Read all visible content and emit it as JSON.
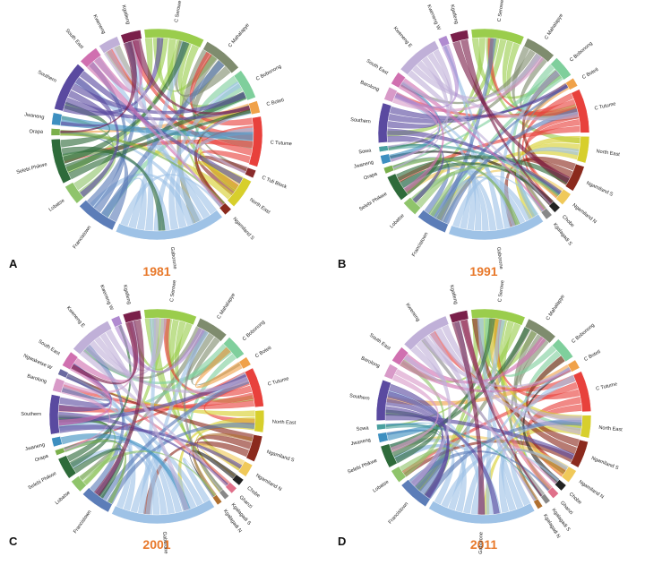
{
  "figure": {
    "panels": [
      {
        "letter": "A",
        "year": "1981",
        "regions": [
          {
            "name": "C Serowe",
            "size": 6,
            "color": "#9acd4c"
          },
          {
            "name": "C Mahalapye",
            "size": 4,
            "color": "#7f8c6e"
          },
          {
            "name": "C Bobonong",
            "size": 3,
            "color": "#7fcf9c"
          },
          {
            "name": "C Boteti",
            "size": 1.2,
            "color": "#f0a24a"
          },
          {
            "name": "C Tutume",
            "size": 5,
            "color": "#e8413c"
          },
          {
            "name": "C Tuli Block",
            "size": 0.8,
            "color": "#8a2b2b"
          },
          {
            "name": "North East",
            "size": 3,
            "color": "#d7cf2c"
          },
          {
            "name": "Ngamiland S",
            "size": 0.8,
            "color": "#8b2a1d"
          },
          {
            "name": "Gaborone",
            "size": 11,
            "color": "#9ec2e6"
          },
          {
            "name": "Francistown",
            "size": 4,
            "color": "#5c7db8"
          },
          {
            "name": "Lobatse",
            "size": 2,
            "color": "#8fc46b"
          },
          {
            "name": "Selebi Phikwe",
            "size": 4.5,
            "color": "#2e6b3a"
          },
          {
            "name": "Orapa",
            "size": 0.7,
            "color": "#7bb04c"
          },
          {
            "name": "Jwaneng",
            "size": 1.2,
            "color": "#3d8fc0"
          },
          {
            "name": "Southern",
            "size": 5,
            "color": "#5a4aa0"
          },
          {
            "name": "South East",
            "size": 2,
            "color": "#d070b0"
          },
          {
            "name": "Kweneng",
            "size": 2,
            "color": "#c0b0d8"
          },
          {
            "name": "Kgatleng",
            "size": 2,
            "color": "#7a1f4a"
          }
        ]
      },
      {
        "letter": "B",
        "year": "1991",
        "regions": [
          {
            "name": "C Serowe",
            "size": 6,
            "color": "#9acd4c"
          },
          {
            "name": "C Mahalapye",
            "size": 3.5,
            "color": "#7f8c6e"
          },
          {
            "name": "C Bobonong",
            "size": 2.5,
            "color": "#7fcf9c"
          },
          {
            "name": "C Boteti",
            "size": 1,
            "color": "#f0a24a"
          },
          {
            "name": "C Tutume",
            "size": 5,
            "color": "#e8413c"
          },
          {
            "name": "North East",
            "size": 3,
            "color": "#d7cf2c"
          },
          {
            "name": "Ngamiland S",
            "size": 3,
            "color": "#8b2a1d"
          },
          {
            "name": "Ngamiland N",
            "size": 1.5,
            "color": "#f0c95a"
          },
          {
            "name": "Chobe",
            "size": 0.8,
            "color": "#222222"
          },
          {
            "name": "Kgalagadi S",
            "size": 0.8,
            "color": "#888888"
          },
          {
            "name": "Gaborone",
            "size": 11,
            "color": "#9ec2e6"
          },
          {
            "name": "Francistown",
            "size": 3.5,
            "color": "#5c7db8"
          },
          {
            "name": "Lobatse",
            "size": 1.8,
            "color": "#8fc46b"
          },
          {
            "name": "Selebi Phikwe",
            "size": 3,
            "color": "#2e6b3a"
          },
          {
            "name": "Orapa",
            "size": 0.7,
            "color": "#7bb04c"
          },
          {
            "name": "Jwaneng",
            "size": 1,
            "color": "#3d8fc0"
          },
          {
            "name": "Sowa",
            "size": 0.6,
            "color": "#4aa0a0"
          },
          {
            "name": "Southern",
            "size": 4.5,
            "color": "#5a4aa0"
          },
          {
            "name": "Barolong",
            "size": 1.5,
            "color": "#d89ac8"
          },
          {
            "name": "South East",
            "size": 1.5,
            "color": "#d070b0"
          },
          {
            "name": "Kweneng E",
            "size": 5,
            "color": "#c0b0d8"
          },
          {
            "name": "Kweneng W",
            "size": 1,
            "color": "#b08ad0"
          },
          {
            "name": "Kgatleng",
            "size": 2,
            "color": "#7a1f4a"
          }
        ]
      },
      {
        "letter": "C",
        "year": "2001",
        "regions": [
          {
            "name": "C Serowe",
            "size": 6,
            "color": "#9acd4c"
          },
          {
            "name": "C Mahalapye",
            "size": 3.5,
            "color": "#7f8c6e"
          },
          {
            "name": "C Bobonong",
            "size": 2.5,
            "color": "#7fcf9c"
          },
          {
            "name": "C Boteti",
            "size": 1,
            "color": "#f0a24a"
          },
          {
            "name": "C Tutume",
            "size": 4.5,
            "color": "#e8413c"
          },
          {
            "name": "North East",
            "size": 2.5,
            "color": "#d7cf2c"
          },
          {
            "name": "Ngamiland S",
            "size": 3,
            "color": "#8b2a1d"
          },
          {
            "name": "Ngamiland N",
            "size": 1.5,
            "color": "#f0c95a"
          },
          {
            "name": "Chobe",
            "size": 0.8,
            "color": "#222222"
          },
          {
            "name": "Ghanzi",
            "size": 0.8,
            "color": "#e0708a"
          },
          {
            "name": "Kgalagadi S",
            "size": 0.6,
            "color": "#888888"
          },
          {
            "name": "Kgalagadi N",
            "size": 0.6,
            "color": "#b07030"
          },
          {
            "name": "Gaborone",
            "size": 12,
            "color": "#9ec2e6"
          },
          {
            "name": "Francistown",
            "size": 3.5,
            "color": "#5c7db8"
          },
          {
            "name": "Lobatse",
            "size": 1.5,
            "color": "#8fc46b"
          },
          {
            "name": "Selebi Phikwe",
            "size": 2.5,
            "color": "#2e6b3a"
          },
          {
            "name": "Orapa",
            "size": 0.6,
            "color": "#7bb04c"
          },
          {
            "name": "Jwaneng",
            "size": 1,
            "color": "#3d8fc0"
          },
          {
            "name": "Southern",
            "size": 4.5,
            "color": "#5a4aa0"
          },
          {
            "name": "Barolong",
            "size": 1.5,
            "color": "#d89ac8"
          },
          {
            "name": "Ngwaketse W",
            "size": 0.7,
            "color": "#6a6aa0"
          },
          {
            "name": "South East",
            "size": 1.8,
            "color": "#d070b0"
          },
          {
            "name": "Kweneng E",
            "size": 5,
            "color": "#c0b0d8"
          },
          {
            "name": "Kweneng W",
            "size": 1,
            "color": "#b08ad0"
          },
          {
            "name": "Kgatleng",
            "size": 2,
            "color": "#7a1f4a"
          }
        ]
      },
      {
        "letter": "D",
        "year": "2011",
        "regions": [
          {
            "name": "C Serowe",
            "size": 6,
            "color": "#9acd4c"
          },
          {
            "name": "C Mahalapye",
            "size": 3.5,
            "color": "#7f8c6e"
          },
          {
            "name": "C Bobonong",
            "size": 2.5,
            "color": "#7fcf9c"
          },
          {
            "name": "C Boteti",
            "size": 1,
            "color": "#f0a24a"
          },
          {
            "name": "C Tutume",
            "size": 4.5,
            "color": "#e8413c"
          },
          {
            "name": "North East",
            "size": 2.5,
            "color": "#d7cf2c"
          },
          {
            "name": "Ngamiland S",
            "size": 3,
            "color": "#8b2a1d"
          },
          {
            "name": "Ngamiland N",
            "size": 1.5,
            "color": "#f0c95a"
          },
          {
            "name": "Chobe",
            "size": 0.8,
            "color": "#222222"
          },
          {
            "name": "Ghanzi",
            "size": 0.8,
            "color": "#e0708a"
          },
          {
            "name": "Kgalagadi S",
            "size": 0.6,
            "color": "#888888"
          },
          {
            "name": "Kgalagadi N",
            "size": 0.6,
            "color": "#b07030"
          },
          {
            "name": "Gaborone",
            "size": 12,
            "color": "#9ec2e6"
          },
          {
            "name": "Francistown",
            "size": 3.5,
            "color": "#5c7db8"
          },
          {
            "name": "Lobatse",
            "size": 1.5,
            "color": "#8fc46b"
          },
          {
            "name": "Selebi Phikwe",
            "size": 2.5,
            "color": "#2e6b3a"
          },
          {
            "name": "Jwaneng",
            "size": 1,
            "color": "#3d8fc0"
          },
          {
            "name": "Sowa",
            "size": 0.6,
            "color": "#4aa0a0"
          },
          {
            "name": "Southern",
            "size": 4.5,
            "color": "#5a4aa0"
          },
          {
            "name": "Barolong",
            "size": 1.5,
            "color": "#d89ac8"
          },
          {
            "name": "South East",
            "size": 1.8,
            "color": "#d070b0"
          },
          {
            "name": "Kweneng",
            "size": 5.5,
            "color": "#c0b0d8"
          },
          {
            "name": "Kgatleng",
            "size": 2,
            "color": "#7a1f4a"
          }
        ]
      }
    ]
  },
  "chart_data": [
    {
      "type": "chord",
      "title": "1981"
    },
    {
      "type": "chord",
      "title": "1991"
    },
    {
      "type": "chord",
      "title": "2001"
    },
    {
      "type": "chord",
      "title": "2011"
    }
  ]
}
